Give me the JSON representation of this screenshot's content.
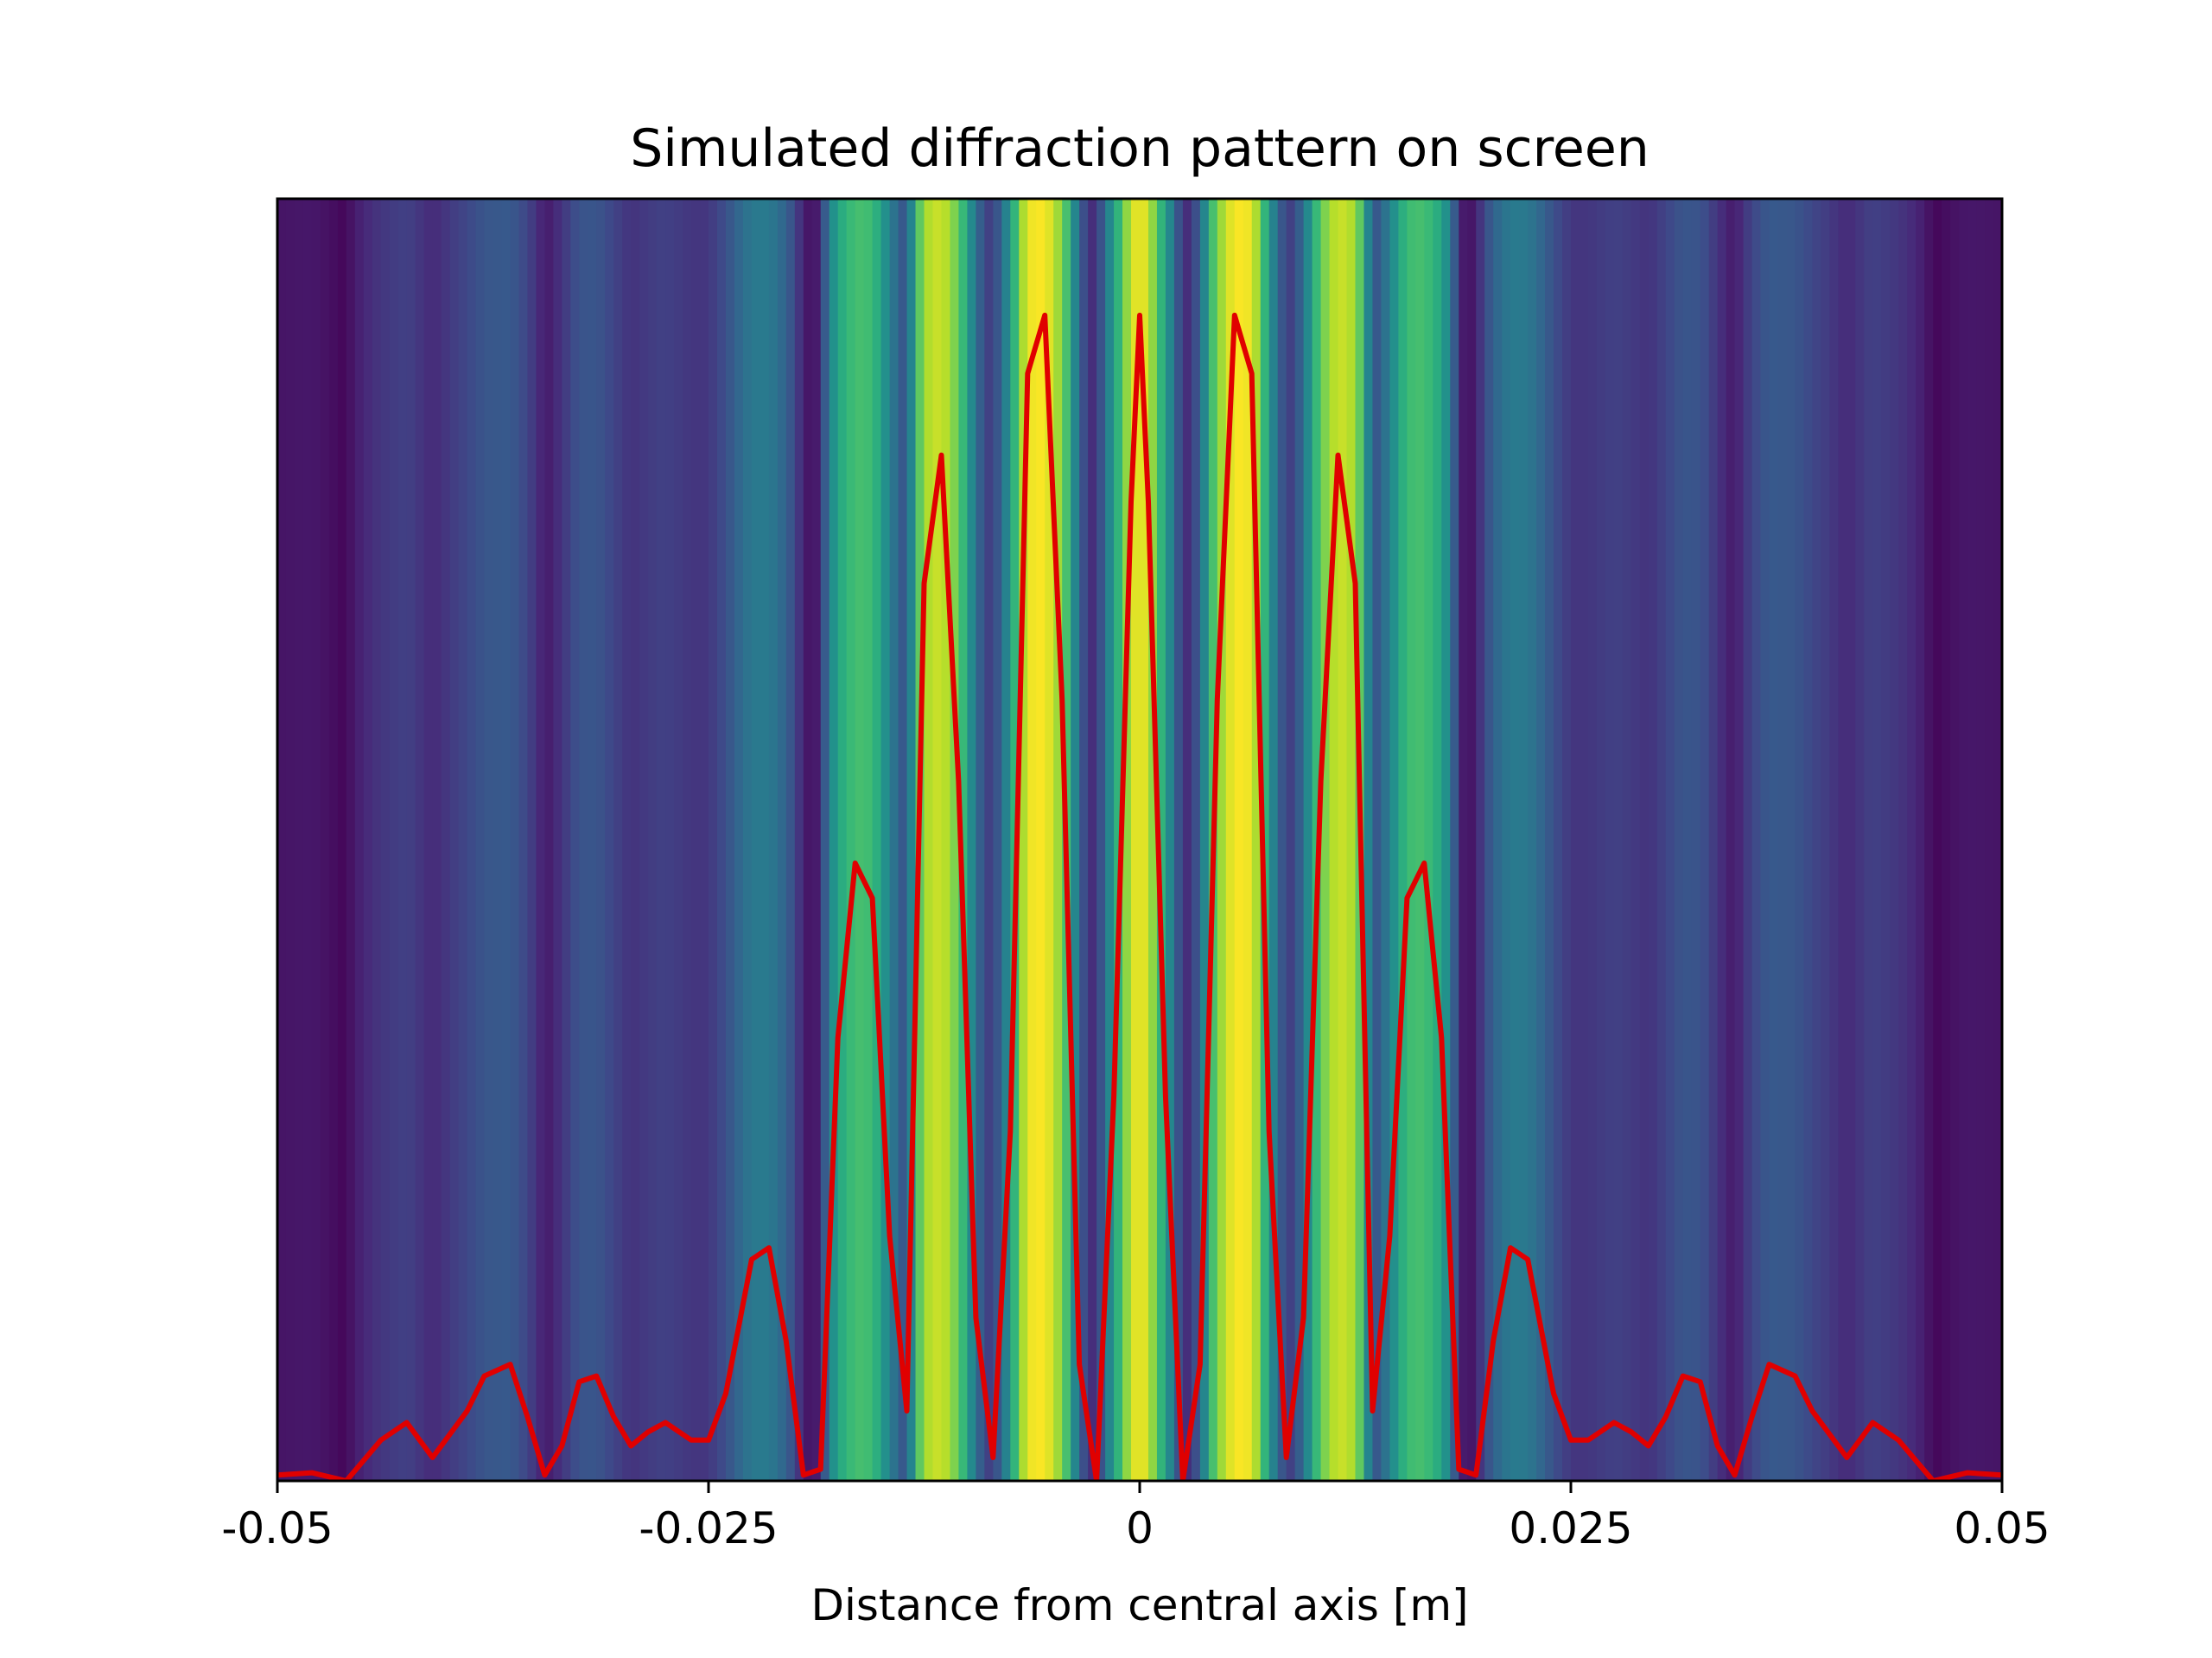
{
  "chart_data": {
    "type": "area",
    "title": "Simulated diffraction pattern on screen",
    "xlabel": "Distance from central axis [m]",
    "ylabel": "",
    "xlim": [
      -0.05,
      0.05
    ],
    "ylim": [
      0,
      1.1
    ],
    "xticks": [
      -0.05,
      -0.025,
      0,
      0.025,
      0.05
    ],
    "xtick_labels": [
      "-0.05",
      "-0.025",
      "0",
      "0.025",
      "0.05"
    ],
    "yticks_visible": false,
    "grid": false,
    "legend": "none",
    "background": {
      "type": "intensity-colormap",
      "colormap": "viridis",
      "note_source": "same intensity as curve"
    },
    "series": [
      {
        "color": "#e00000",
        "x": [
          -0.05,
          -0.048,
          -0.046,
          -0.044,
          -0.0425,
          -0.041,
          -0.039,
          -0.038,
          -0.0365,
          -0.0355,
          -0.0345,
          -0.0335,
          -0.0325,
          -0.0315,
          -0.0305,
          -0.0295,
          -0.0285,
          -0.0275,
          -0.026,
          -0.025,
          -0.024,
          -0.0225,
          -0.0215,
          -0.0205,
          -0.0195,
          -0.0185,
          -0.0175,
          -0.0165,
          -0.0155,
          -0.0145,
          -0.0135,
          -0.0125,
          -0.0115,
          -0.0105,
          -0.0095,
          -0.0085,
          -0.0075,
          -0.0065,
          -0.0055,
          -0.0045,
          -0.0035,
          -0.0025,
          -0.0015,
          -0.0005,
          0,
          0.0005,
          0.0015,
          0.0025,
          0.0035,
          0.0045,
          0.0055,
          0.0065,
          0.0075,
          0.0085,
          0.0095,
          0.0105,
          0.0115,
          0.0125,
          0.0135,
          0.0145,
          0.0155,
          0.0165,
          0.0175,
          0.0185,
          0.0195,
          0.0205,
          0.0215,
          0.0225,
          0.024,
          0.025,
          0.026,
          0.0275,
          0.0285,
          0.0295,
          0.0305,
          0.0315,
          0.0325,
          0.0335,
          0.0345,
          0.0355,
          0.0365,
          0.038,
          0.039,
          0.041,
          0.0425,
          0.044,
          0.046,
          0.048,
          0.05
        ],
        "y": [
          0.005,
          0.007,
          0.0,
          0.035,
          0.05,
          0.02,
          0.06,
          0.09,
          0.1,
          0.055,
          0.005,
          0.03,
          0.085,
          0.09,
          0.055,
          0.03,
          0.042,
          0.05,
          0.035,
          0.035,
          0.075,
          0.19,
          0.2,
          0.12,
          0.005,
          0.01,
          0.38,
          0.53,
          0.5,
          0.21,
          0.06,
          0.77,
          0.88,
          0.6,
          0.14,
          0.02,
          0.3,
          0.95,
          1.0,
          0.67,
          0.1,
          0.0,
          0.33,
          0.84,
          1.0,
          0.84,
          0.33,
          0.0,
          0.1,
          0.67,
          1.0,
          0.95,
          0.3,
          0.02,
          0.14,
          0.6,
          0.88,
          0.77,
          0.06,
          0.21,
          0.5,
          0.53,
          0.38,
          0.01,
          0.005,
          0.12,
          0.2,
          0.19,
          0.075,
          0.035,
          0.035,
          0.05,
          0.042,
          0.03,
          0.055,
          0.09,
          0.085,
          0.03,
          0.005,
          0.055,
          0.1,
          0.09,
          0.06,
          0.02,
          0.05,
          0.035,
          0.0,
          0.007,
          0.005
        ]
      }
    ]
  }
}
